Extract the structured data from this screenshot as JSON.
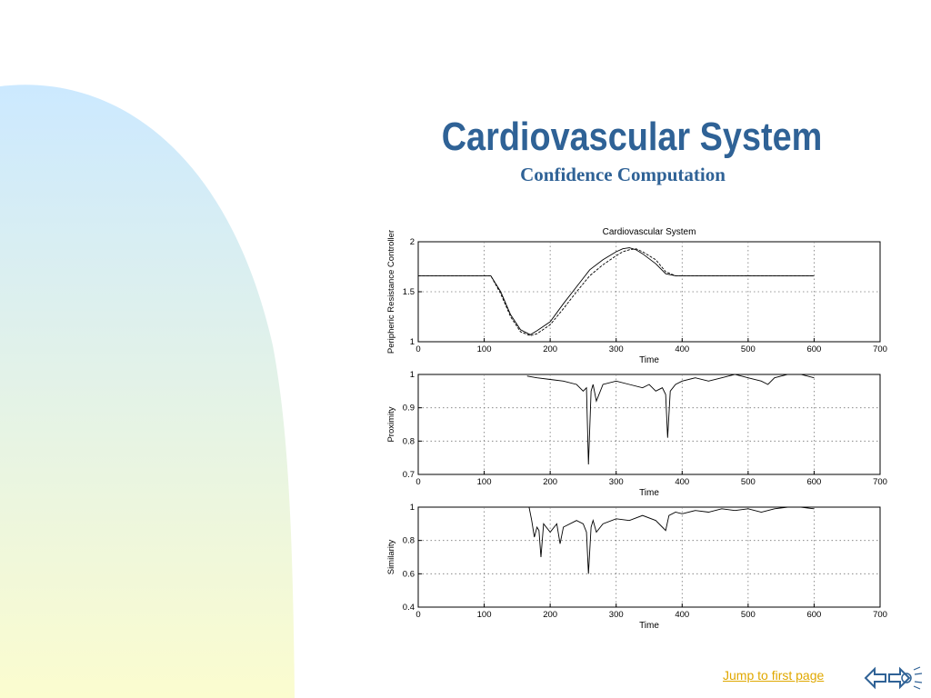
{
  "slide": {
    "title": "Cardiovascular System",
    "subtitle": "Confidence Computation",
    "link_label": "Jump to first page"
  },
  "colors": {
    "title": "#2f6296",
    "link": "#e0a800",
    "background_gradient_top": "#cce9ff",
    "background_gradient_bottom": "#fbfccf"
  },
  "icons": {
    "nav": "back-forward-arrows-icon"
  },
  "chart_data": [
    {
      "type": "line",
      "title": "Cardiovascular System",
      "xlabel": "Time",
      "ylabel": "Peripheric Resistance Controller",
      "xlim": [
        0,
        700
      ],
      "ylim": [
        1,
        2
      ],
      "xticks": [
        "0",
        "100",
        "200",
        "300",
        "400",
        "500",
        "600",
        "700"
      ],
      "yticks": [
        "1",
        "1.5",
        "2"
      ],
      "grid": true,
      "x": [
        0,
        110,
        125,
        140,
        155,
        170,
        180,
        200,
        220,
        240,
        260,
        280,
        300,
        310,
        320,
        330,
        340,
        360,
        375,
        390,
        400,
        500,
        600
      ],
      "series": [
        {
          "values": [
            1.66,
            1.66,
            1.5,
            1.27,
            1.12,
            1.07,
            1.11,
            1.2,
            1.38,
            1.55,
            1.72,
            1.82,
            1.9,
            1.93,
            1.94,
            1.92,
            1.88,
            1.78,
            1.68,
            1.66,
            1.66,
            1.66,
            1.66
          ]
        },
        {
          "values": [
            1.66,
            1.66,
            1.48,
            1.25,
            1.1,
            1.06,
            1.08,
            1.17,
            1.33,
            1.5,
            1.66,
            1.77,
            1.86,
            1.9,
            1.92,
            1.93,
            1.9,
            1.82,
            1.7,
            1.66,
            1.66,
            1.66,
            1.66
          ]
        }
      ]
    },
    {
      "type": "line",
      "title": "",
      "xlabel": "Time",
      "ylabel": "Proximity",
      "xlim": [
        0,
        700
      ],
      "ylim": [
        0.7,
        1
      ],
      "xticks": [
        "0",
        "100",
        "200",
        "300",
        "400",
        "500",
        "600",
        "700"
      ],
      "yticks": [
        "0.7",
        "0.8",
        "0.9",
        "1"
      ],
      "grid": true,
      "x": [
        165,
        180,
        200,
        220,
        240,
        250,
        255,
        258,
        262,
        265,
        270,
        280,
        300,
        320,
        340,
        350,
        360,
        370,
        375,
        378,
        382,
        390,
        400,
        420,
        440,
        460,
        480,
        500,
        520,
        530,
        540,
        560,
        580,
        600
      ],
      "series": [
        {
          "values": [
            0.995,
            0.99,
            0.985,
            0.98,
            0.97,
            0.95,
            0.96,
            0.73,
            0.95,
            0.97,
            0.92,
            0.97,
            0.98,
            0.97,
            0.96,
            0.97,
            0.95,
            0.96,
            0.94,
            0.81,
            0.95,
            0.97,
            0.98,
            0.99,
            0.98,
            0.99,
            1.0,
            0.99,
            0.98,
            0.97,
            0.99,
            1.0,
            1.0,
            0.99
          ]
        }
      ]
    },
    {
      "type": "line",
      "title": "",
      "xlabel": "Time",
      "ylabel": "Similarity",
      "xlim": [
        0,
        700
      ],
      "ylim": [
        0.4,
        1
      ],
      "xticks": [
        "0",
        "100",
        "200",
        "300",
        "400",
        "500",
        "600",
        "700"
      ],
      "yticks": [
        "0.4",
        "0.6",
        "0.8",
        "1"
      ],
      "grid": true,
      "x": [
        160,
        168,
        172,
        176,
        180,
        183,
        186,
        190,
        200,
        210,
        215,
        220,
        240,
        250,
        255,
        258,
        262,
        265,
        270,
        280,
        300,
        320,
        340,
        360,
        370,
        375,
        380,
        390,
        400,
        420,
        440,
        460,
        480,
        500,
        520,
        530,
        540,
        560,
        580,
        600
      ],
      "series": [
        {
          "values": [
            1.0,
            1.0,
            0.92,
            0.82,
            0.88,
            0.86,
            0.7,
            0.9,
            0.85,
            0.9,
            0.78,
            0.88,
            0.92,
            0.9,
            0.85,
            0.6,
            0.88,
            0.92,
            0.85,
            0.9,
            0.93,
            0.92,
            0.95,
            0.92,
            0.88,
            0.86,
            0.95,
            0.97,
            0.96,
            0.98,
            0.97,
            0.99,
            0.98,
            0.99,
            0.97,
            0.98,
            0.99,
            1.0,
            1.0,
            0.99
          ]
        }
      ]
    }
  ]
}
